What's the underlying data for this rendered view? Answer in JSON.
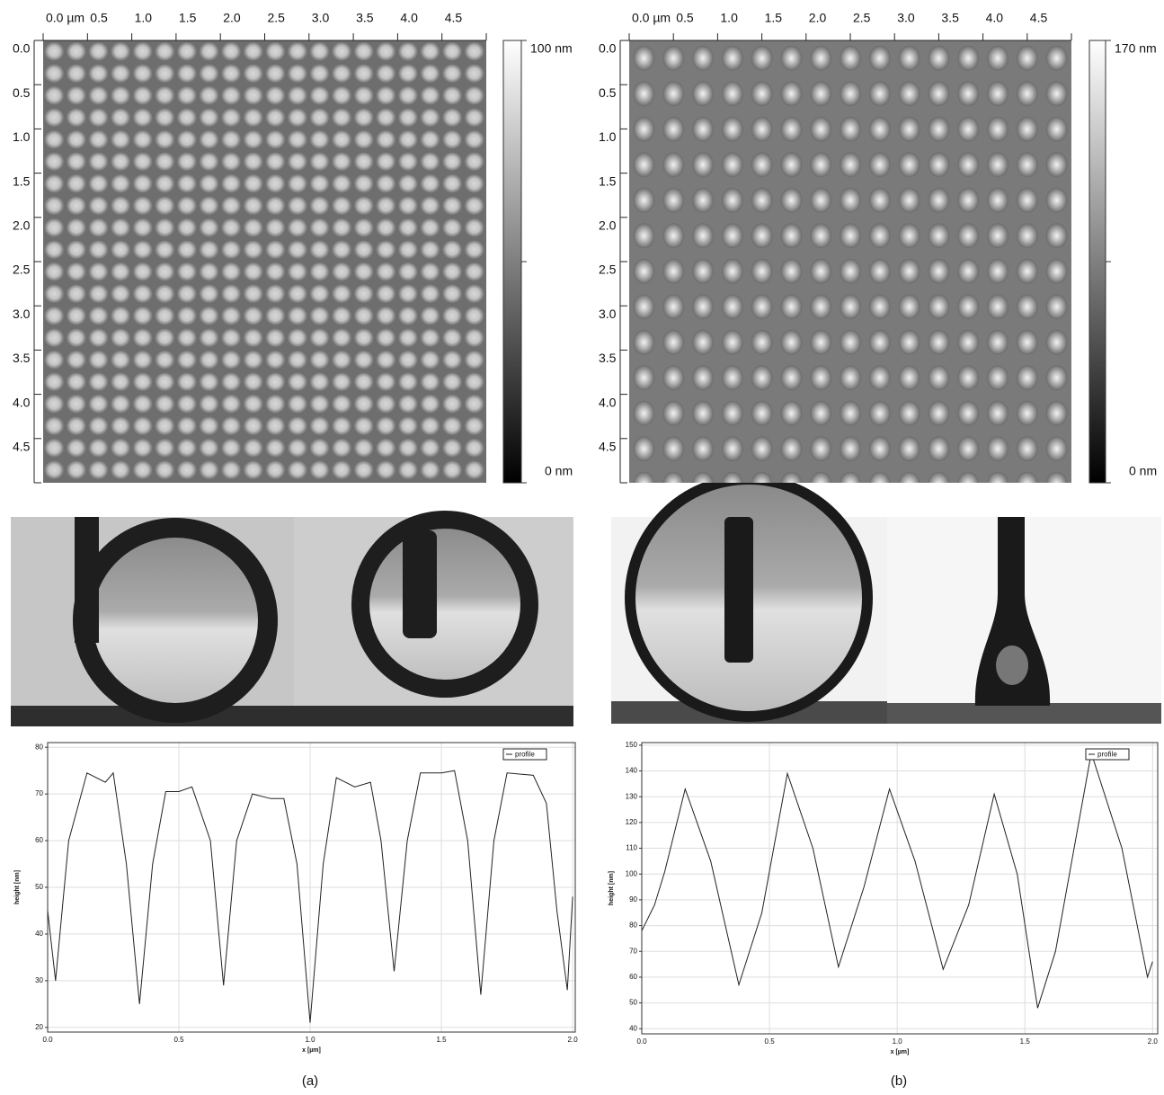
{
  "chart_data": [
    {
      "type": "image",
      "xlim": [
        0,
        5
      ],
      "ylim": [
        0,
        5
      ],
      "xticks": [
        {
          "value": 0,
          "label": "0.0 µm"
        },
        0.5,
        {
          "value": 1,
          "label": "1.0"
        },
        1.5,
        {
          "value": 2,
          "label": "2.0"
        },
        2.5,
        {
          "value": 3,
          "label": "3.0"
        },
        3.5,
        {
          "value": 4,
          "label": "4.0"
        },
        4.5
      ],
      "yticks": [
        {
          "value": 0,
          "label": "0.0"
        },
        0.5,
        {
          "value": 1,
          "label": "1.0"
        },
        1.5,
        {
          "value": 2,
          "label": "2.0"
        },
        2.5,
        {
          "value": 3,
          "label": "3.0"
        },
        3.5,
        {
          "value": 4,
          "label": "4.0"
        },
        4.5
      ],
      "clim": [
        0,
        100
      ],
      "colorbar_ticks": [
        {
          "value": 100,
          "label": "100 nm"
        },
        {
          "value": 0,
          "label": "0 nm"
        }
      ]
    },
    {
      "type": "image",
      "xlim": [
        0,
        5
      ],
      "ylim": [
        0,
        5
      ],
      "xticks": [
        {
          "value": 0,
          "label": "0.0 µm"
        },
        0.5,
        {
          "value": 1,
          "label": "1.0"
        },
        1.5,
        {
          "value": 2,
          "label": "2.0"
        },
        2.5,
        {
          "value": 3,
          "label": "3.0"
        },
        3.5,
        {
          "value": 4,
          "label": "4.0"
        },
        4.5
      ],
      "yticks": [
        {
          "value": 0,
          "label": "0.0"
        },
        0.5,
        {
          "value": 1,
          "label": "1.0"
        },
        1.5,
        {
          "value": 2,
          "label": "2.0"
        },
        2.5,
        {
          "value": 3,
          "label": "3.0"
        },
        3.5,
        {
          "value": 4,
          "label": "4.0"
        },
        4.5
      ],
      "clim": [
        0,
        170
      ],
      "colorbar_ticks": [
        {
          "value": 170,
          "label": "170 nm"
        },
        {
          "value": 0,
          "label": "0 nm"
        }
      ]
    },
    {
      "type": "line",
      "x_label": "x [µm]",
      "y_label": "height [nm]",
      "xlim": [
        0,
        2.01
      ],
      "ylim": [
        19,
        81
      ],
      "xticks": [
        {
          "value": 0,
          "label": "0.0"
        },
        0.5,
        {
          "value": 1,
          "label": "1.0"
        },
        1.5,
        {
          "value": 2,
          "label": "2.0"
        }
      ],
      "yticks": [
        20,
        30,
        40,
        50,
        60,
        70,
        80
      ],
      "grid": true,
      "legend": "upper right",
      "series": [
        {
          "name": "profile",
          "color": "#222222",
          "x": [
            0,
            0.03,
            0.08,
            0.15,
            0.22,
            0.25,
            0.3,
            0.35,
            0.4,
            0.45,
            0.5,
            0.55,
            0.62,
            0.67,
            0.72,
            0.78,
            0.85,
            0.9,
            0.95,
            1.0,
            1.05,
            1.1,
            1.17,
            1.23,
            1.27,
            1.32,
            1.37,
            1.42,
            1.5,
            1.55,
            1.6,
            1.65,
            1.7,
            1.75,
            1.85,
            1.9,
            1.94,
            1.98,
            2.0
          ],
          "values": [
            45,
            30,
            60,
            74.5,
            72.5,
            74.5,
            55,
            25,
            55,
            70.5,
            70.5,
            71.5,
            60,
            29,
            60,
            70,
            69,
            69,
            55,
            21,
            55,
            73.5,
            71.5,
            72.5,
            60,
            32,
            60,
            74.5,
            74.5,
            75,
            60,
            27,
            60,
            74.5,
            74,
            68,
            45,
            28,
            48
          ]
        }
      ]
    },
    {
      "type": "line",
      "x_label": "x [µm]",
      "y_label": "height [nm]",
      "xlim": [
        0,
        2.02
      ],
      "ylim": [
        38,
        151
      ],
      "xticks": [
        {
          "value": 0,
          "label": "0.0"
        },
        0.5,
        {
          "value": 1,
          "label": "1.0"
        },
        1.5,
        {
          "value": 2,
          "label": "2.0"
        }
      ],
      "yticks": [
        40,
        50,
        60,
        70,
        80,
        90,
        100,
        110,
        120,
        130,
        140,
        150
      ],
      "grid": true,
      "legend": "upper right",
      "series": [
        {
          "name": "profile",
          "color": "#222222",
          "x": [
            0,
            0.05,
            0.09,
            0.17,
            0.27,
            0.38,
            0.47,
            0.57,
            0.67,
            0.77,
            0.87,
            0.97,
            1.07,
            1.18,
            1.28,
            1.38,
            1.47,
            1.55,
            1.62,
            1.76,
            1.88,
            1.98,
            2.0
          ],
          "values": [
            78,
            88,
            101,
            133,
            105,
            57,
            85,
            139,
            110,
            64,
            95,
            133,
            105,
            63,
            88,
            131,
            100,
            48,
            70,
            147,
            110,
            60,
            66
          ]
        }
      ]
    }
  ],
  "panel_labels": [
    "(a)",
    "(b)"
  ]
}
